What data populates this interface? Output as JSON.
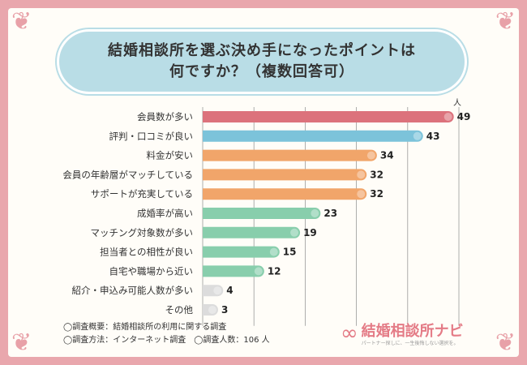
{
  "title": {
    "line1": "結婚相談所を選ぶ決め手になったポイントは",
    "line2": "何ですか？（複数回答可）"
  },
  "notes": {
    "line1": "◯調査概要：結婚相談所の利用に関する調査",
    "line2": "◯調査方法：インターネット調査　◯調査人数：106 人"
  },
  "logo": {
    "mark": "∞",
    "name": "結婚相談所ナビ",
    "tagline": "パートナー探しに、一生後悔しない選択を。"
  },
  "decor": {
    "corner": "❦"
  },
  "colors": {
    "red": "#dc727c",
    "blue": "#7cc3da",
    "orange": "#f1a56a",
    "green": "#88ceac",
    "gray": "#dcdcdc",
    "grid": "#9a9a9a"
  },
  "chart_data": {
    "type": "bar",
    "orientation": "horizontal",
    "unit": "人",
    "xlim": [
      0,
      50
    ],
    "grid": true,
    "categories": [
      "会員数が多い",
      "評判・口コミが良い",
      "料金が安い",
      "会員の年齢層がマッチしている",
      "サポートが充実している",
      "成婚率が高い",
      "マッチング対象数が多い",
      "担当者との相性が良い",
      "自宅や職場から近い",
      "紹介・申込み可能人数が多い",
      "その他"
    ],
    "values": [
      49,
      43,
      34,
      32,
      32,
      23,
      19,
      15,
      12,
      4,
      3
    ],
    "bar_colors": [
      "red",
      "blue",
      "orange",
      "orange",
      "orange",
      "green",
      "green",
      "green",
      "green",
      "gray",
      "gray"
    ]
  }
}
